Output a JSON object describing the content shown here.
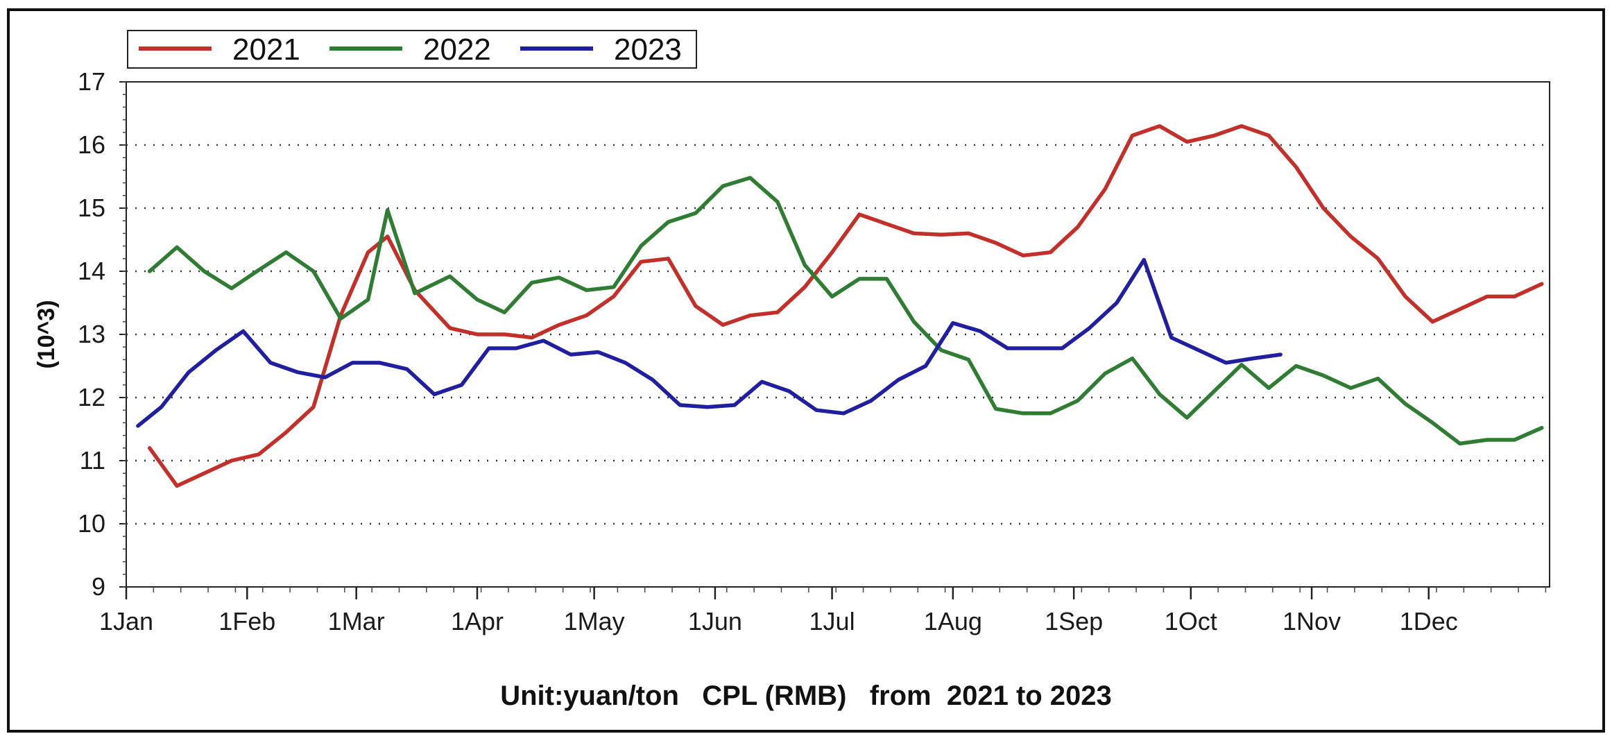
{
  "chart_data": {
    "type": "line",
    "title": "",
    "ylabel": "(10^3)",
    "xlabel": "",
    "caption": "Unit:yuan/ton   CPL (RMB)   from  2021 to 2023",
    "ylim": [
      9,
      17
    ],
    "yticks": [
      9,
      10,
      11,
      12,
      13,
      14,
      15,
      16,
      17
    ],
    "xlim": [
      1,
      366
    ],
    "x_ticks": [
      {
        "day": 1,
        "label": "1Jan"
      },
      {
        "day": 32,
        "label": "1Feb"
      },
      {
        "day": 60,
        "label": "1Mar"
      },
      {
        "day": 91,
        "label": "1Apr"
      },
      {
        "day": 121,
        "label": "1May"
      },
      {
        "day": 152,
        "label": "1Jun"
      },
      {
        "day": 182,
        "label": "1Jul"
      },
      {
        "day": 213,
        "label": "1Aug"
      },
      {
        "day": 244,
        "label": "1Sep"
      },
      {
        "day": 274,
        "label": "1Oct"
      },
      {
        "day": 305,
        "label": "1Nov"
      },
      {
        "day": 335,
        "label": "1Dec"
      }
    ],
    "grid": "horizontal-dotted",
    "legend": {
      "position": "top-left",
      "orientation": "horizontal"
    },
    "colors": {
      "2021": "#c3302a",
      "2022": "#2e7d32",
      "2023": "#1f1f9f"
    },
    "series": [
      {
        "name": "2021",
        "color": "#c3302a",
        "points": [
          [
            7,
            11.2
          ],
          [
            14,
            10.6
          ],
          [
            21,
            10.8
          ],
          [
            28,
            11.0
          ],
          [
            35,
            11.1
          ],
          [
            42,
            11.45
          ],
          [
            49,
            11.85
          ],
          [
            56,
            13.3
          ],
          [
            63,
            14.3
          ],
          [
            68,
            14.55
          ],
          [
            75,
            13.7
          ],
          [
            84,
            13.1
          ],
          [
            91,
            13.0
          ],
          [
            98,
            13.0
          ],
          [
            105,
            12.95
          ],
          [
            112,
            13.15
          ],
          [
            119,
            13.3
          ],
          [
            126,
            13.6
          ],
          [
            133,
            14.15
          ],
          [
            140,
            14.2
          ],
          [
            147,
            13.45
          ],
          [
            154,
            13.15
          ],
          [
            161,
            13.3
          ],
          [
            168,
            13.35
          ],
          [
            175,
            13.75
          ],
          [
            182,
            14.3
          ],
          [
            189,
            14.9
          ],
          [
            196,
            14.75
          ],
          [
            203,
            14.6
          ],
          [
            210,
            14.58
          ],
          [
            217,
            14.6
          ],
          [
            224,
            14.45
          ],
          [
            231,
            14.25
          ],
          [
            238,
            14.3
          ],
          [
            245,
            14.7
          ],
          [
            252,
            15.3
          ],
          [
            259,
            16.15
          ],
          [
            266,
            16.3
          ],
          [
            273,
            16.05
          ],
          [
            280,
            16.15
          ],
          [
            287,
            16.3
          ],
          [
            294,
            16.15
          ],
          [
            301,
            15.65
          ],
          [
            308,
            15.0
          ],
          [
            315,
            14.55
          ],
          [
            322,
            14.2
          ],
          [
            329,
            13.6
          ],
          [
            336,
            13.2
          ],
          [
            343,
            13.4
          ],
          [
            350,
            13.6
          ],
          [
            357,
            13.6
          ],
          [
            364,
            13.8
          ]
        ]
      },
      {
        "name": "2022",
        "color": "#2e7d32",
        "points": [
          [
            7,
            14.0
          ],
          [
            14,
            14.38
          ],
          [
            21,
            14.0
          ],
          [
            28,
            13.73
          ],
          [
            35,
            14.02
          ],
          [
            42,
            14.3
          ],
          [
            49,
            14.0
          ],
          [
            56,
            13.25
          ],
          [
            63,
            13.55
          ],
          [
            68,
            14.97
          ],
          [
            75,
            13.65
          ],
          [
            84,
            13.92
          ],
          [
            91,
            13.55
          ],
          [
            98,
            13.35
          ],
          [
            105,
            13.82
          ],
          [
            112,
            13.9
          ],
          [
            119,
            13.7
          ],
          [
            126,
            13.75
          ],
          [
            133,
            14.4
          ],
          [
            140,
            14.78
          ],
          [
            147,
            14.92
          ],
          [
            154,
            15.35
          ],
          [
            161,
            15.48
          ],
          [
            168,
            15.1
          ],
          [
            175,
            14.1
          ],
          [
            182,
            13.6
          ],
          [
            189,
            13.88
          ],
          [
            196,
            13.88
          ],
          [
            203,
            13.2
          ],
          [
            210,
            12.75
          ],
          [
            217,
            12.6
          ],
          [
            224,
            11.82
          ],
          [
            231,
            11.75
          ],
          [
            238,
            11.75
          ],
          [
            245,
            11.95
          ],
          [
            252,
            12.38
          ],
          [
            259,
            12.62
          ],
          [
            266,
            12.05
          ],
          [
            273,
            11.68
          ],
          [
            280,
            12.1
          ],
          [
            287,
            12.52
          ],
          [
            294,
            12.15
          ],
          [
            301,
            12.5
          ],
          [
            308,
            12.35
          ],
          [
            315,
            12.15
          ],
          [
            322,
            12.3
          ],
          [
            329,
            11.9
          ],
          [
            336,
            11.6
          ],
          [
            343,
            11.27
          ],
          [
            350,
            11.33
          ],
          [
            357,
            11.33
          ],
          [
            364,
            11.52
          ]
        ]
      },
      {
        "name": "2023",
        "color": "#1f1f9f",
        "points": [
          [
            4,
            11.55
          ],
          [
            10,
            11.85
          ],
          [
            17,
            12.4
          ],
          [
            24,
            12.75
          ],
          [
            31,
            13.05
          ],
          [
            38,
            12.55
          ],
          [
            45,
            12.4
          ],
          [
            52,
            12.32
          ],
          [
            59,
            12.55
          ],
          [
            66,
            12.55
          ],
          [
            73,
            12.45
          ],
          [
            80,
            12.05
          ],
          [
            87,
            12.2
          ],
          [
            94,
            12.78
          ],
          [
            101,
            12.78
          ],
          [
            108,
            12.9
          ],
          [
            115,
            12.68
          ],
          [
            122,
            12.72
          ],
          [
            129,
            12.55
          ],
          [
            136,
            12.28
          ],
          [
            143,
            11.88
          ],
          [
            150,
            11.85
          ],
          [
            157,
            11.88
          ],
          [
            164,
            12.25
          ],
          [
            171,
            12.1
          ],
          [
            178,
            11.8
          ],
          [
            185,
            11.75
          ],
          [
            192,
            11.95
          ],
          [
            199,
            12.28
          ],
          [
            206,
            12.5
          ],
          [
            213,
            13.18
          ],
          [
            220,
            13.05
          ],
          [
            227,
            12.78
          ],
          [
            234,
            12.78
          ],
          [
            241,
            12.78
          ],
          [
            248,
            13.1
          ],
          [
            255,
            13.5
          ],
          [
            262,
            14.18
          ],
          [
            269,
            12.95
          ],
          [
            276,
            12.75
          ],
          [
            283,
            12.55
          ],
          [
            290,
            12.62
          ],
          [
            297,
            12.68
          ]
        ]
      }
    ]
  }
}
